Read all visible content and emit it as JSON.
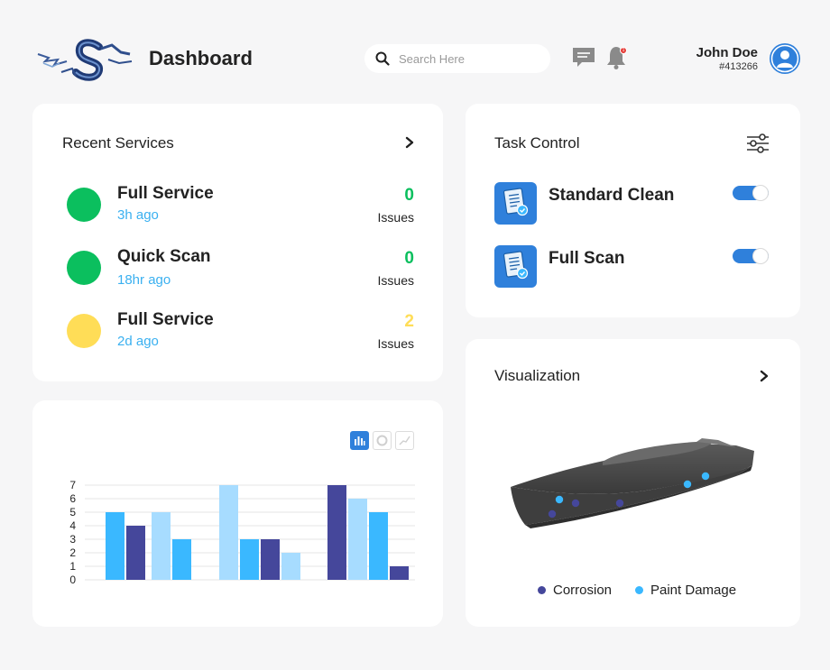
{
  "header": {
    "title": "Dashboard",
    "search_placeholder": "Search Here",
    "notification_count": "1",
    "user_name": "John Doe",
    "user_id": "#413266"
  },
  "recent_services": {
    "title": "Recent Services",
    "items": [
      {
        "name": "Full Service",
        "time": "3h ago",
        "count": "0",
        "issues_label": "Issues",
        "status_color": "#0bbf5e"
      },
      {
        "name": "Quick Scan",
        "time": "18hr ago",
        "count": "0",
        "issues_label": "Issues",
        "status_color": "#0bbf5e"
      },
      {
        "name": "Full Service",
        "time": "2d ago",
        "count": "2",
        "issues_label": "Issues",
        "status_color": "#ffdd57"
      }
    ]
  },
  "task_control": {
    "title": "Task Control",
    "items": [
      {
        "name": "Standard Clean",
        "enabled": true
      },
      {
        "name": "Full Scan",
        "enabled": true
      }
    ]
  },
  "chart_data": {
    "type": "bar",
    "yticks": [
      0,
      1,
      2,
      3,
      4,
      5,
      6,
      7
    ],
    "ylim": [
      0,
      7
    ],
    "groups": [
      {
        "values": [
          5,
          4
        ],
        "colors": [
          "#3ab8ff",
          "#45479b"
        ]
      },
      {
        "values": [
          5,
          3
        ],
        "colors": [
          "#a7dcff",
          "#3ab8ff"
        ]
      },
      {
        "values": [
          7,
          3,
          3,
          2
        ],
        "colors": [
          "#a7dcff",
          "#3ab8ff",
          "#45479b",
          "#a7dcff"
        ]
      },
      {
        "values": [
          7,
          6,
          5,
          1
        ],
        "colors": [
          "#45479b",
          "#a7dcff",
          "#3ab8ff",
          "#45479b"
        ]
      }
    ]
  },
  "visualization": {
    "title": "Visualization",
    "legend": [
      {
        "label": "Corrosion",
        "color": "#45479b"
      },
      {
        "label": "Paint Damage",
        "color": "#3ab8ff"
      }
    ]
  }
}
